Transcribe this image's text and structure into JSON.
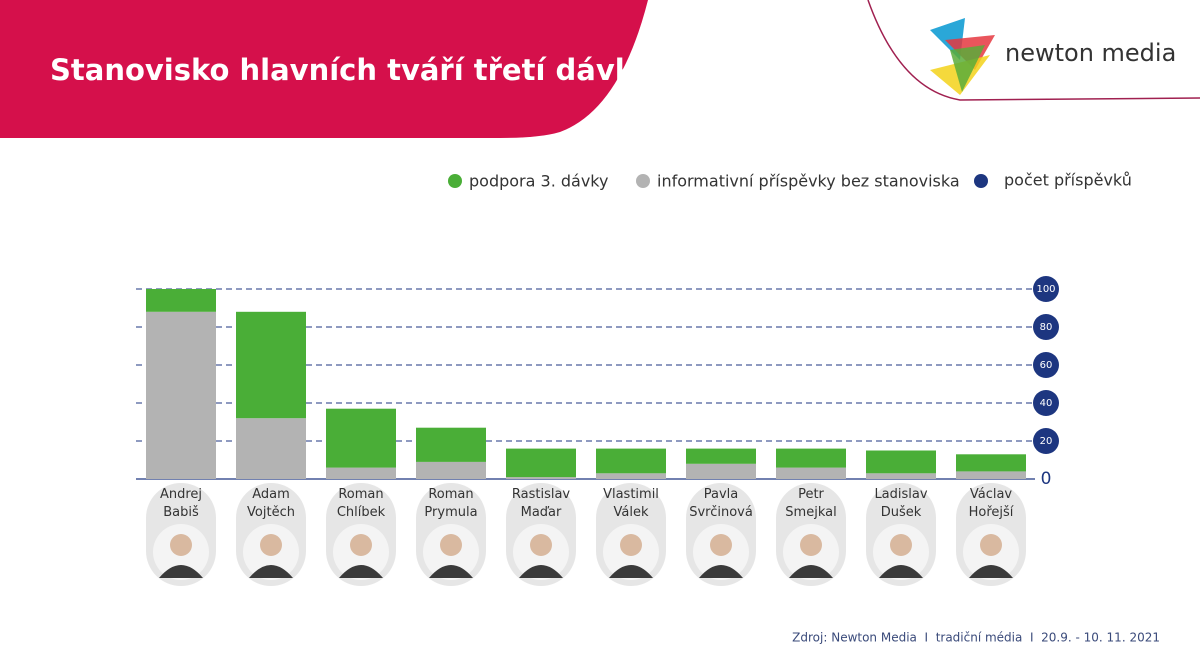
{
  "header": {
    "title": "Stanovisko hlavních tváří třetí dávky",
    "logo": "newton media"
  },
  "chart_data": {
    "type": "stacked-bar",
    "categories": [
      "Andrej Babiš",
      "Adam Vojtěch",
      "Roman Chlíbek",
      "Roman Prymula",
      "Rastislav Maďar",
      "Vlastimil Válek",
      "Pavla Svrčinová",
      "Petr Smejkal",
      "Ladislav Dušek",
      "Václav Hořejší"
    ],
    "series": [
      {
        "name": "informativní příspěvky bez stanoviska",
        "color": "#b3b3b3",
        "values": [
          88,
          32,
          6,
          9,
          1,
          3,
          8,
          6,
          3,
          4
        ]
      },
      {
        "name": "podpora 3. dávky",
        "color": "#4aae37",
        "values": [
          12,
          56,
          31,
          18,
          15,
          13,
          8,
          10,
          12,
          9
        ]
      }
    ],
    "axis_legend": {
      "name": "počet příspěvků",
      "color": "#1d3680"
    },
    "legend_order": [
      1,
      0
    ],
    "ylim": [
      0,
      100
    ],
    "yticks": [
      0,
      20,
      40,
      60,
      80,
      100
    ],
    "grid": true
  },
  "footer": {
    "source": "Zdroj: Newton Media  I  tradiční média  I  20.9. - 10. 11. 2021"
  }
}
